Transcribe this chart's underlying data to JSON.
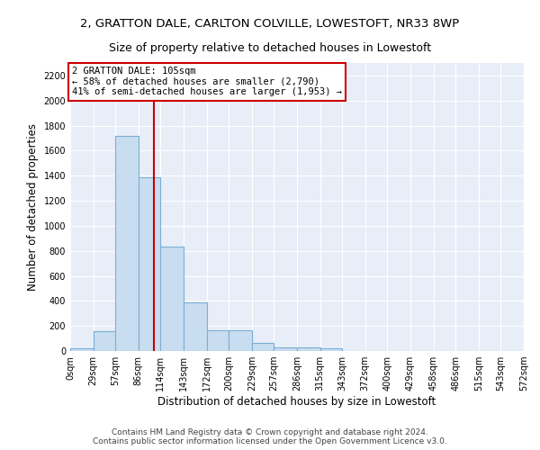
{
  "title_line1": "2, GRATTON DALE, CARLTON COLVILLE, LOWESTOFT, NR33 8WP",
  "title_line2": "Size of property relative to detached houses in Lowestoft",
  "xlabel": "Distribution of detached houses by size in Lowestoft",
  "ylabel": "Number of detached properties",
  "bar_edges": [
    0,
    29,
    57,
    86,
    114,
    143,
    172,
    200,
    229,
    257,
    286,
    315,
    343,
    372,
    400,
    429,
    458,
    486,
    515,
    543,
    572
  ],
  "bar_heights": [
    20,
    155,
    1720,
    1390,
    835,
    390,
    165,
    165,
    65,
    30,
    30,
    20,
    0,
    0,
    0,
    0,
    0,
    0,
    0,
    0
  ],
  "bar_color": "#c9ddf0",
  "bar_edge_color": "#7aafd4",
  "bar_edge_width": 0.8,
  "red_line_x": 105,
  "red_line_color": "#cc0000",
  "annotation_text": "2 GRATTON DALE: 105sqm\n← 58% of detached houses are smaller (2,790)\n41% of semi-detached houses are larger (1,953) →",
  "annotation_box_color": "white",
  "annotation_box_edge_color": "#cc0000",
  "ylim": [
    0,
    2300
  ],
  "yticks": [
    0,
    200,
    400,
    600,
    800,
    1000,
    1200,
    1400,
    1600,
    1800,
    2000,
    2200
  ],
  "background_color": "#e8eef8",
  "grid_color": "white",
  "footer_line1": "Contains HM Land Registry data © Crown copyright and database right 2024.",
  "footer_line2": "Contains public sector information licensed under the Open Government Licence v3.0.",
  "title_fontsize": 9.5,
  "subtitle_fontsize": 9,
  "axis_label_fontsize": 8.5,
  "tick_fontsize": 7,
  "annotation_fontsize": 7.5,
  "footer_fontsize": 6.5
}
